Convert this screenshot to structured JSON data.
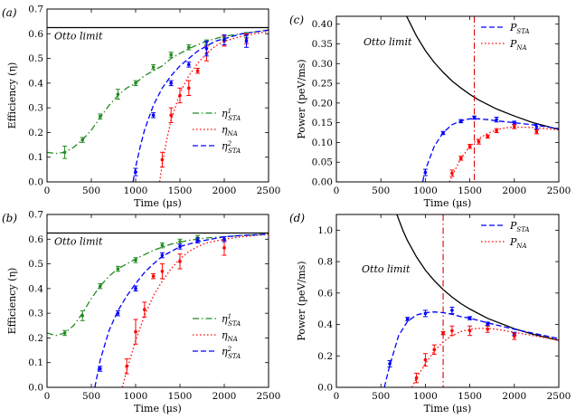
{
  "chart_data": [
    {
      "panel": "(a)",
      "type": "line",
      "xlabel": "Time (μs)",
      "ylabel": "Efficiency (η)",
      "xlim": [
        0,
        2500
      ],
      "ylim": [
        0,
        0.7
      ],
      "xticks": [
        0,
        500,
        1000,
        1500,
        2000,
        2500
      ],
      "yticks": [
        0,
        0.1,
        0.2,
        0.3,
        0.4,
        0.5,
        0.6,
        0.7
      ],
      "ytick_labels": [
        "0.0",
        "0.1",
        "0.2",
        "0.3",
        "0.4",
        "0.5",
        "0.6",
        "0.7"
      ],
      "hline": {
        "label": "Otto limit",
        "y": 0.625
      },
      "legend_position": "center-right",
      "series": [
        {
          "name": "η¹STA",
          "color": "#228B22",
          "dash": "dashdot",
          "x": [
            0,
            100,
            200,
            300,
            400,
            500,
            600,
            700,
            800,
            900,
            1000,
            1100,
            1200,
            1300,
            1400,
            1500,
            1600,
            1700,
            1800,
            1900,
            2000,
            2200,
            2500
          ],
          "y": [
            0.12,
            0.115,
            0.12,
            0.14,
            0.17,
            0.21,
            0.26,
            0.31,
            0.35,
            0.38,
            0.4,
            0.43,
            0.45,
            0.47,
            0.5,
            0.52,
            0.54,
            0.555,
            0.57,
            0.58,
            0.59,
            0.6,
            0.615
          ],
          "points": [
            {
              "x": 200,
              "y": 0.12,
              "err": 0.025
            },
            {
              "x": 400,
              "y": 0.17,
              "err": 0.01
            },
            {
              "x": 600,
              "y": 0.265,
              "err": 0.01
            },
            {
              "x": 800,
              "y": 0.355,
              "err": 0.02
            },
            {
              "x": 1000,
              "y": 0.4,
              "err": 0.01
            },
            {
              "x": 1200,
              "y": 0.465,
              "err": 0.01
            },
            {
              "x": 1400,
              "y": 0.515,
              "err": 0.01
            },
            {
              "x": 1600,
              "y": 0.545,
              "err": 0.01
            },
            {
              "x": 1800,
              "y": 0.565,
              "err": 0.01
            },
            {
              "x": 2000,
              "y": 0.585,
              "err": 0.01
            },
            {
              "x": 2250,
              "y": 0.595,
              "err": 0.01
            }
          ]
        },
        {
          "name": "ηNA",
          "color": "#FF0000",
          "dash": "dotted",
          "x": [
            1270,
            1300,
            1350,
            1400,
            1500,
            1600,
            1700,
            1800,
            1900,
            2000,
            2200,
            2500
          ],
          "y": [
            0.0,
            0.07,
            0.17,
            0.25,
            0.36,
            0.43,
            0.48,
            0.52,
            0.55,
            0.57,
            0.59,
            0.61
          ],
          "points": [
            {
              "x": 1300,
              "y": 0.09,
              "err": 0.03
            },
            {
              "x": 1400,
              "y": 0.27,
              "err": 0.03
            },
            {
              "x": 1500,
              "y": 0.35,
              "err": 0.03
            },
            {
              "x": 1600,
              "y": 0.38,
              "err": 0.03
            },
            {
              "x": 1700,
              "y": 0.45,
              "err": 0.01
            },
            {
              "x": 1800,
              "y": 0.52,
              "err": 0.03
            },
            {
              "x": 2000,
              "y": 0.57,
              "err": 0.02
            },
            {
              "x": 2250,
              "y": 0.58,
              "err": 0.02
            }
          ]
        },
        {
          "name": "η²STA",
          "color": "#0000FF",
          "dash": "dashed",
          "x": [
            970,
            1000,
            1050,
            1100,
            1200,
            1300,
            1400,
            1500,
            1600,
            1700,
            1800,
            1900,
            2000,
            2200,
            2500
          ],
          "y": [
            0.0,
            0.06,
            0.14,
            0.21,
            0.31,
            0.38,
            0.43,
            0.47,
            0.5,
            0.53,
            0.55,
            0.57,
            0.58,
            0.6,
            0.615
          ],
          "points": [
            {
              "x": 1000,
              "y": 0.04,
              "err": 0.015
            },
            {
              "x": 1200,
              "y": 0.27,
              "err": 0.01
            },
            {
              "x": 1400,
              "y": 0.4,
              "err": 0.01
            },
            {
              "x": 1600,
              "y": 0.475,
              "err": 0.01
            },
            {
              "x": 1800,
              "y": 0.54,
              "err": 0.03
            },
            {
              "x": 2000,
              "y": 0.575,
              "err": 0.02
            },
            {
              "x": 2250,
              "y": 0.57,
              "err": 0.025
            }
          ]
        }
      ]
    },
    {
      "panel": "(c)",
      "type": "line",
      "xlabel": "Time (μs)",
      "ylabel": "Power (peV/ms)",
      "xlim": [
        0,
        2500
      ],
      "ylim": [
        0,
        0.42
      ],
      "xticks": [
        0,
        500,
        1000,
        1500,
        2000,
        2500
      ],
      "yticks": [
        0,
        0.05,
        0.1,
        0.15,
        0.2,
        0.25,
        0.3,
        0.35,
        0.4
      ],
      "ytick_labels": [
        "0.00",
        "0.05",
        "0.10",
        "0.15",
        "0.20",
        "0.25",
        "0.30",
        "0.35",
        "0.40"
      ],
      "vline": {
        "x": 1550
      },
      "limit_curve": {
        "label": "Otto limit",
        "x": [
          790,
          900,
          1000,
          1100,
          1200,
          1300,
          1400,
          1500,
          1600,
          1800,
          2000,
          2200,
          2500
        ],
        "y": [
          0.42,
          0.37,
          0.333,
          0.303,
          0.278,
          0.256,
          0.238,
          0.222,
          0.208,
          0.185,
          0.167,
          0.151,
          0.133
        ]
      },
      "legend_position": "top-right",
      "series": [
        {
          "name": "PSTA",
          "color": "#0000FF",
          "dash": "dashed",
          "x": [
            970,
            1000,
            1100,
            1200,
            1300,
            1400,
            1500,
            1600,
            1700,
            1800,
            2000,
            2200,
            2500
          ],
          "y": [
            0.0,
            0.03,
            0.09,
            0.125,
            0.145,
            0.155,
            0.16,
            0.16,
            0.158,
            0.155,
            0.15,
            0.145,
            0.135
          ],
          "points": [
            {
              "x": 1000,
              "y": 0.024,
              "err": 0.008
            },
            {
              "x": 1200,
              "y": 0.124,
              "err": 0.004
            },
            {
              "x": 1400,
              "y": 0.154,
              "err": 0.004
            },
            {
              "x": 1550,
              "y": 0.163,
              "err": 0.004
            },
            {
              "x": 1800,
              "y": 0.158,
              "err": 0.006
            },
            {
              "x": 2000,
              "y": 0.15,
              "err": 0.004
            },
            {
              "x": 2250,
              "y": 0.14,
              "err": 0.006
            }
          ]
        },
        {
          "name": "PNA",
          "color": "#FF0000",
          "dash": "dotted",
          "x": [
            1270,
            1300,
            1400,
            1500,
            1600,
            1700,
            1800,
            1900,
            2000,
            2200,
            2500
          ],
          "y": [
            0.0,
            0.015,
            0.06,
            0.09,
            0.11,
            0.123,
            0.132,
            0.137,
            0.139,
            0.138,
            0.132
          ],
          "points": [
            {
              "x": 1300,
              "y": 0.022,
              "err": 0.008
            },
            {
              "x": 1400,
              "y": 0.06,
              "err": 0.005
            },
            {
              "x": 1500,
              "y": 0.09,
              "err": 0.005
            },
            {
              "x": 1600,
              "y": 0.102,
              "err": 0.006
            },
            {
              "x": 1700,
              "y": 0.115,
              "err": 0.004
            },
            {
              "x": 1800,
              "y": 0.13,
              "err": 0.005
            },
            {
              "x": 2000,
              "y": 0.14,
              "err": 0.005
            },
            {
              "x": 2250,
              "y": 0.127,
              "err": 0.005
            }
          ]
        }
      ]
    },
    {
      "panel": "(b)",
      "type": "line",
      "xlabel": "Time (μs)",
      "ylabel": "Efficiency (η)",
      "xlim": [
        0,
        2500
      ],
      "ylim": [
        0,
        0.7
      ],
      "xticks": [
        0,
        500,
        1000,
        1500,
        2000,
        2500
      ],
      "yticks": [
        0,
        0.1,
        0.2,
        0.3,
        0.4,
        0.5,
        0.6,
        0.7
      ],
      "ytick_labels": [
        "0.0",
        "0.1",
        "0.2",
        "0.3",
        "0.4",
        "0.5",
        "0.6",
        "0.7"
      ],
      "hline": {
        "label": "Otto limit",
        "y": 0.625
      },
      "legend_position": "center-right",
      "series": [
        {
          "name": "η¹STA",
          "color": "#228B22",
          "dash": "dashdot",
          "x": [
            0,
            100,
            200,
            300,
            400,
            500,
            600,
            700,
            800,
            900,
            1000,
            1200,
            1400,
            1600,
            1800,
            2000,
            2200,
            2500
          ],
          "y": [
            0.22,
            0.21,
            0.22,
            0.25,
            0.3,
            0.36,
            0.41,
            0.45,
            0.48,
            0.5,
            0.52,
            0.555,
            0.58,
            0.595,
            0.605,
            0.61,
            0.615,
            0.62
          ],
          "points": [
            {
              "x": 200,
              "y": 0.22,
              "err": 0.01
            },
            {
              "x": 400,
              "y": 0.29,
              "err": 0.02
            },
            {
              "x": 600,
              "y": 0.41,
              "err": 0.01
            },
            {
              "x": 800,
              "y": 0.48,
              "err": 0.01
            },
            {
              "x": 1000,
              "y": 0.515,
              "err": 0.01
            },
            {
              "x": 1300,
              "y": 0.575,
              "err": 0.01
            },
            {
              "x": 1500,
              "y": 0.59,
              "err": 0.01
            },
            {
              "x": 1700,
              "y": 0.605,
              "err": 0.01
            },
            {
              "x": 2000,
              "y": 0.6,
              "err": 0.01
            }
          ]
        },
        {
          "name": "ηNA",
          "color": "#FF0000",
          "dash": "dotted",
          "x": [
            850,
            900,
            1000,
            1100,
            1200,
            1300,
            1400,
            1500,
            1600,
            1700,
            1800,
            2000,
            2200,
            2500
          ],
          "y": [
            0.0,
            0.07,
            0.19,
            0.29,
            0.37,
            0.43,
            0.48,
            0.52,
            0.55,
            0.57,
            0.585,
            0.6,
            0.61,
            0.62
          ],
          "points": [
            {
              "x": 900,
              "y": 0.085,
              "err": 0.03
            },
            {
              "x": 1000,
              "y": 0.225,
              "err": 0.05
            },
            {
              "x": 1100,
              "y": 0.315,
              "err": 0.03
            },
            {
              "x": 1200,
              "y": 0.45,
              "err": 0.01
            },
            {
              "x": 1300,
              "y": 0.47,
              "err": 0.03
            },
            {
              "x": 1500,
              "y": 0.51,
              "err": 0.03
            },
            {
              "x": 2000,
              "y": 0.565,
              "err": 0.03
            }
          ]
        },
        {
          "name": "η²STA",
          "color": "#0000FF",
          "dash": "dashed",
          "x": [
            540,
            600,
            700,
            800,
            900,
            1000,
            1100,
            1200,
            1300,
            1400,
            1500,
            1700,
            2000,
            2200,
            2500
          ],
          "y": [
            0.0,
            0.11,
            0.23,
            0.31,
            0.37,
            0.42,
            0.465,
            0.5,
            0.53,
            0.55,
            0.57,
            0.59,
            0.61,
            0.615,
            0.62
          ],
          "points": [
            {
              "x": 600,
              "y": 0.075,
              "err": 0.01
            },
            {
              "x": 800,
              "y": 0.3,
              "err": 0.01
            },
            {
              "x": 1000,
              "y": 0.4,
              "err": 0.01
            },
            {
              "x": 1300,
              "y": 0.535,
              "err": 0.01
            },
            {
              "x": 1500,
              "y": 0.57,
              "err": 0.01
            },
            {
              "x": 1700,
              "y": 0.595,
              "err": 0.01
            },
            {
              "x": 2000,
              "y": 0.6,
              "err": 0.01
            }
          ]
        }
      ]
    },
    {
      "panel": "(d)",
      "type": "line",
      "xlabel": "Time (μs)",
      "ylabel": "Power (peV/ms)",
      "xlim": [
        0,
        2500
      ],
      "ylim": [
        0,
        1.1
      ],
      "xticks": [
        0,
        500,
        1000,
        1500,
        2000,
        2500
      ],
      "yticks": [
        0,
        0.2,
        0.4,
        0.6,
        0.8,
        1.0
      ],
      "ytick_labels": [
        "0.0",
        "0.2",
        "0.4",
        "0.6",
        "0.8",
        "1.0"
      ],
      "vline": {
        "x": 1200
      },
      "limit_curve": {
        "label": "Otto limit",
        "x": [
          680,
          750,
          800,
          900,
          1000,
          1100,
          1200,
          1300,
          1400,
          1500,
          1700,
          2000,
          2200,
          2500
        ],
        "y": [
          1.1,
          0.995,
          0.933,
          0.83,
          0.746,
          0.679,
          0.622,
          0.574,
          0.533,
          0.498,
          0.439,
          0.373,
          0.339,
          0.299
        ]
      },
      "legend_position": "top-right",
      "series": [
        {
          "name": "PSTA",
          "color": "#0000FF",
          "dash": "dashed",
          "x": [
            540,
            600,
            700,
            800,
            900,
            1000,
            1100,
            1200,
            1300,
            1400,
            1500,
            1700,
            2000,
            2500
          ],
          "y": [
            0.0,
            0.14,
            0.33,
            0.42,
            0.46,
            0.475,
            0.48,
            0.475,
            0.465,
            0.45,
            0.44,
            0.41,
            0.37,
            0.31
          ],
          "points": [
            {
              "x": 600,
              "y": 0.15,
              "err": 0.02
            },
            {
              "x": 800,
              "y": 0.435,
              "err": 0.01
            },
            {
              "x": 1000,
              "y": 0.47,
              "err": 0.02
            },
            {
              "x": 1300,
              "y": 0.49,
              "err": 0.02
            },
            {
              "x": 1500,
              "y": 0.44,
              "err": 0.01
            },
            {
              "x": 1700,
              "y": 0.405,
              "err": 0.01
            },
            {
              "x": 2000,
              "y": 0.34,
              "err": 0.01
            }
          ]
        },
        {
          "name": "PNA",
          "color": "#FF0000",
          "dash": "dotted",
          "x": [
            850,
            900,
            1000,
            1100,
            1200,
            1300,
            1400,
            1500,
            1600,
            1700,
            1800,
            2000,
            2200,
            2500
          ],
          "y": [
            0.0,
            0.06,
            0.15,
            0.23,
            0.29,
            0.33,
            0.355,
            0.37,
            0.375,
            0.375,
            0.37,
            0.35,
            0.33,
            0.3
          ],
          "points": [
            {
              "x": 900,
              "y": 0.06,
              "err": 0.03
            },
            {
              "x": 1000,
              "y": 0.175,
              "err": 0.04
            },
            {
              "x": 1100,
              "y": 0.24,
              "err": 0.03
            },
            {
              "x": 1200,
              "y": 0.345,
              "err": 0.01
            },
            {
              "x": 1300,
              "y": 0.36,
              "err": 0.03
            },
            {
              "x": 1500,
              "y": 0.36,
              "err": 0.03
            },
            {
              "x": 1700,
              "y": 0.37,
              "err": 0.02
            },
            {
              "x": 2000,
              "y": 0.325,
              "err": 0.02
            }
          ]
        }
      ]
    }
  ]
}
